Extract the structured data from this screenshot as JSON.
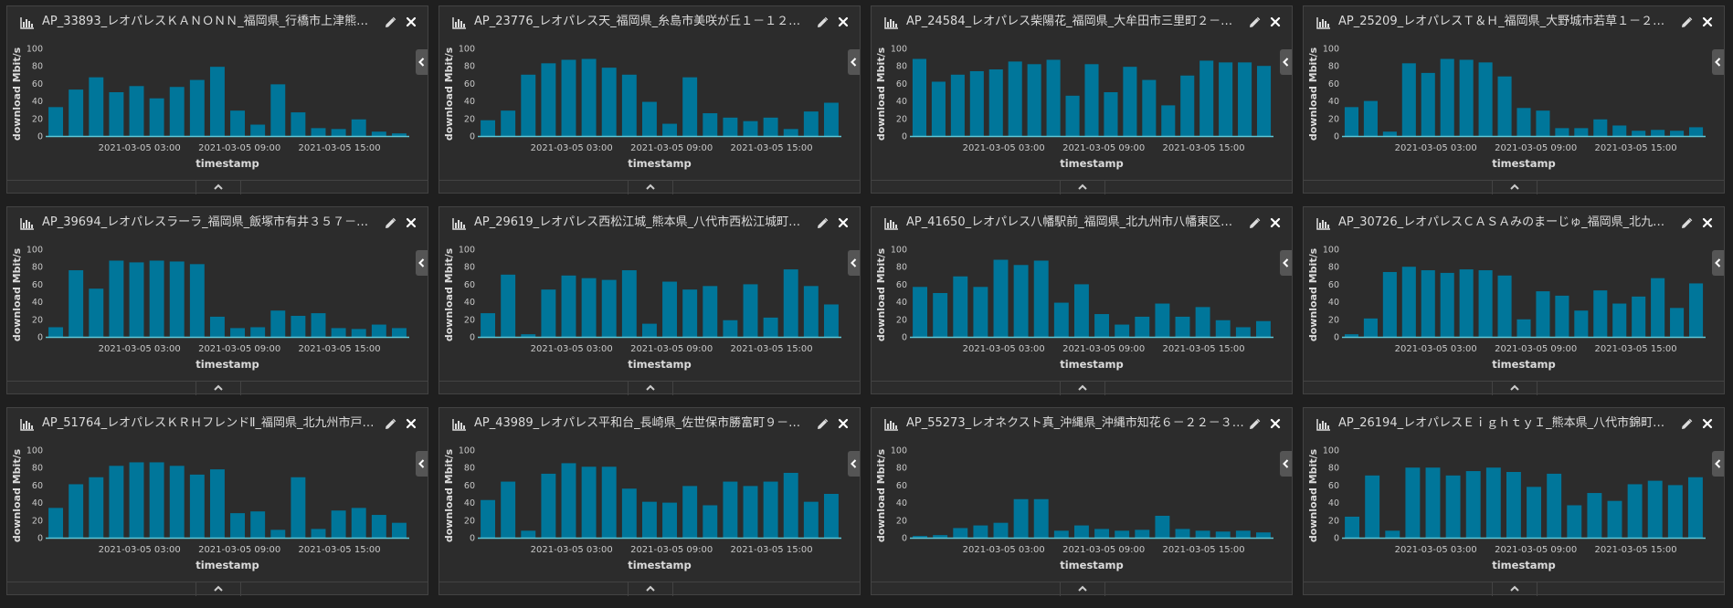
{
  "colors": {
    "bar": "#00769a",
    "axis": "#5ec6d6",
    "text": "#dcdcdc",
    "tick_text": "#c8c8c8",
    "panel_bg": "#2c2c2c",
    "page_bg": "#1f1f1f"
  },
  "icons": {
    "chart": "bar-chart-icon",
    "edit": "pencil-icon",
    "close": "close-icon",
    "collapse": "chevron-left-icon",
    "footer": "chevron-up-icon"
  },
  "chart_data": [
    {
      "type": "bar",
      "title": "AP_33893_レオパレスＫＡＮＯＮＮ_福岡県_行橋市上津熊８…",
      "xlabel": "timestamp",
      "ylabel": "download Mbit/s",
      "ylim": [
        0,
        100
      ],
      "yticks": [
        0,
        20,
        40,
        60,
        80,
        100
      ],
      "xticks": [
        "2021-03-05 03:00",
        "2021-03-05 09:00",
        "2021-03-05 15:00"
      ],
      "values": [
        33,
        53,
        67,
        50,
        57,
        43,
        56,
        64,
        79,
        29,
        13,
        59,
        27,
        9,
        8,
        19,
        5,
        3
      ]
    },
    {
      "type": "bar",
      "title": "AP_23776_レオパレス天_福岡県_糸島市美咲が丘１－１２－…",
      "xlabel": "timestamp",
      "ylabel": "download Mbit/s",
      "ylim": [
        0,
        100
      ],
      "yticks": [
        0,
        20,
        40,
        60,
        80,
        100
      ],
      "xticks": [
        "2021-03-05 03:00",
        "2021-03-05 09:00",
        "2021-03-05 15:00"
      ],
      "values": [
        18,
        29,
        70,
        83,
        87,
        88,
        78,
        70,
        39,
        14,
        67,
        26,
        21,
        17,
        21,
        8,
        28,
        38
      ]
    },
    {
      "type": "bar",
      "title": "AP_24584_レオパレス柴陽花_福岡県_大牟田市三里町２－７…",
      "xlabel": "timestamp",
      "ylabel": "download Mbit/s",
      "ylim": [
        0,
        100
      ],
      "yticks": [
        0,
        20,
        40,
        60,
        80,
        100
      ],
      "xticks": [
        "2021-03-05 03:00",
        "2021-03-05 09:00",
        "2021-03-05 15:00"
      ],
      "values": [
        88,
        62,
        70,
        74,
        76,
        85,
        82,
        87,
        46,
        82,
        50,
        79,
        64,
        35,
        69,
        86,
        84,
        84,
        80
      ]
    },
    {
      "type": "bar",
      "title": "AP_25209_レオパレスＴ＆Ｈ_福岡県_大野城市若草１－２５…",
      "xlabel": "timestamp",
      "ylabel": "download Mbit/s",
      "ylim": [
        0,
        100
      ],
      "yticks": [
        0,
        20,
        40,
        60,
        80,
        100
      ],
      "xticks": [
        "2021-03-05 03:00",
        "2021-03-05 09:00",
        "2021-03-05 15:00"
      ],
      "values": [
        33,
        40,
        5,
        83,
        72,
        88,
        87,
        84,
        68,
        32,
        29,
        9,
        9,
        19,
        12,
        6,
        7,
        6,
        10
      ]
    },
    {
      "type": "bar",
      "title": "AP_39694_レオパレスラーラ_福岡県_飯塚市有井３５７－１…",
      "xlabel": "timestamp",
      "ylabel": "download Mbit/s",
      "ylim": [
        0,
        100
      ],
      "yticks": [
        0,
        20,
        40,
        60,
        80,
        100
      ],
      "xticks": [
        "2021-03-05 03:00",
        "2021-03-05 09:00",
        "2021-03-05 15:00"
      ],
      "values": [
        11,
        76,
        55,
        87,
        85,
        87,
        86,
        83,
        23,
        10,
        11,
        30,
        24,
        27,
        10,
        9,
        14,
        10
      ]
    },
    {
      "type": "bar",
      "title": "AP_29619_レオパレス西松江城_熊本県_八代市西松江城町３…",
      "xlabel": "timestamp",
      "ylabel": "download Mbit/s",
      "ylim": [
        0,
        100
      ],
      "yticks": [
        0,
        20,
        40,
        60,
        80,
        100
      ],
      "xticks": [
        "2021-03-05 03:00",
        "2021-03-05 09:00",
        "2021-03-05 15:00"
      ],
      "values": [
        27,
        71,
        3,
        54,
        70,
        67,
        65,
        76,
        15,
        63,
        54,
        58,
        19,
        60,
        22,
        77,
        58,
        37
      ]
    },
    {
      "type": "bar",
      "title": "AP_41650_レオパレス八幡駅前_福岡県_北九州市八幡東区西…",
      "xlabel": "timestamp",
      "ylabel": "download Mbit/s",
      "ylim": [
        0,
        100
      ],
      "yticks": [
        0,
        20,
        40,
        60,
        80,
        100
      ],
      "xticks": [
        "2021-03-05 03:00",
        "2021-03-05 09:00",
        "2021-03-05 15:00"
      ],
      "values": [
        57,
        50,
        69,
        57,
        88,
        82,
        87,
        39,
        60,
        26,
        14,
        23,
        38,
        23,
        34,
        19,
        11,
        18
      ]
    },
    {
      "type": "bar",
      "title": "AP_30726_レオパレスＣＡＳＡみのまーじゅ_福岡県_北九州…",
      "xlabel": "timestamp",
      "ylabel": "download Mbit/s",
      "ylim": [
        0,
        100
      ],
      "yticks": [
        0,
        20,
        40,
        60,
        80,
        100
      ],
      "xticks": [
        "2021-03-05 03:00",
        "2021-03-05 09:00",
        "2021-03-05 15:00"
      ],
      "values": [
        3,
        21,
        74,
        80,
        76,
        73,
        77,
        76,
        70,
        20,
        52,
        47,
        30,
        53,
        38,
        46,
        67,
        33,
        61
      ]
    },
    {
      "type": "bar",
      "title": "AP_51764_レオパレスＫＲＨフレンドⅡ_福岡県_北九州市戸…",
      "xlabel": "timestamp",
      "ylabel": "download Mbit/s",
      "ylim": [
        0,
        100
      ],
      "yticks": [
        0,
        20,
        40,
        60,
        80,
        100
      ],
      "xticks": [
        "2021-03-05 03:00",
        "2021-03-05 09:00",
        "2021-03-05 15:00"
      ],
      "values": [
        34,
        61,
        69,
        82,
        86,
        86,
        82,
        72,
        78,
        28,
        30,
        9,
        69,
        10,
        31,
        34,
        26,
        17
      ]
    },
    {
      "type": "bar",
      "title": "AP_43989_レオパレス平和台_長崎県_佐世保市勝富町９－２…",
      "xlabel": "timestamp",
      "ylabel": "download Mbit/s",
      "ylim": [
        0,
        100
      ],
      "yticks": [
        0,
        20,
        40,
        60,
        80,
        100
      ],
      "xticks": [
        "2021-03-05 03:00",
        "2021-03-05 09:00",
        "2021-03-05 15:00"
      ],
      "values": [
        43,
        64,
        8,
        73,
        85,
        81,
        81,
        56,
        41,
        40,
        59,
        37,
        64,
        59,
        64,
        74,
        41,
        50
      ]
    },
    {
      "type": "bar",
      "title": "AP_55273_レオネクスト真_沖縄県_沖縄市知花６－２２－３…",
      "xlabel": "timestamp",
      "ylabel": "download Mbit/s",
      "ylim": [
        0,
        100
      ],
      "yticks": [
        0,
        20,
        40,
        60,
        80,
        100
      ],
      "xticks": [
        "2021-03-05 03:00",
        "2021-03-05 09:00",
        "2021-03-05 15:00"
      ],
      "values": [
        2,
        3,
        11,
        14,
        17,
        44,
        44,
        8,
        14,
        10,
        8,
        9,
        25,
        10,
        8,
        7,
        8,
        6
      ]
    },
    {
      "type": "bar",
      "title": "AP_26194_レオパレスＥｉｇｈｔｙＩ_熊本県_八代市錦町１…",
      "xlabel": "timestamp",
      "ylabel": "download Mbit/s",
      "ylim": [
        0,
        100
      ],
      "yticks": [
        0,
        20,
        40,
        60,
        80,
        100
      ],
      "xticks": [
        "2021-03-05 03:00",
        "2021-03-05 09:00",
        "2021-03-05 15:00"
      ],
      "values": [
        24,
        71,
        8,
        80,
        80,
        71,
        76,
        80,
        75,
        58,
        73,
        37,
        51,
        42,
        61,
        65,
        60,
        69
      ]
    }
  ]
}
